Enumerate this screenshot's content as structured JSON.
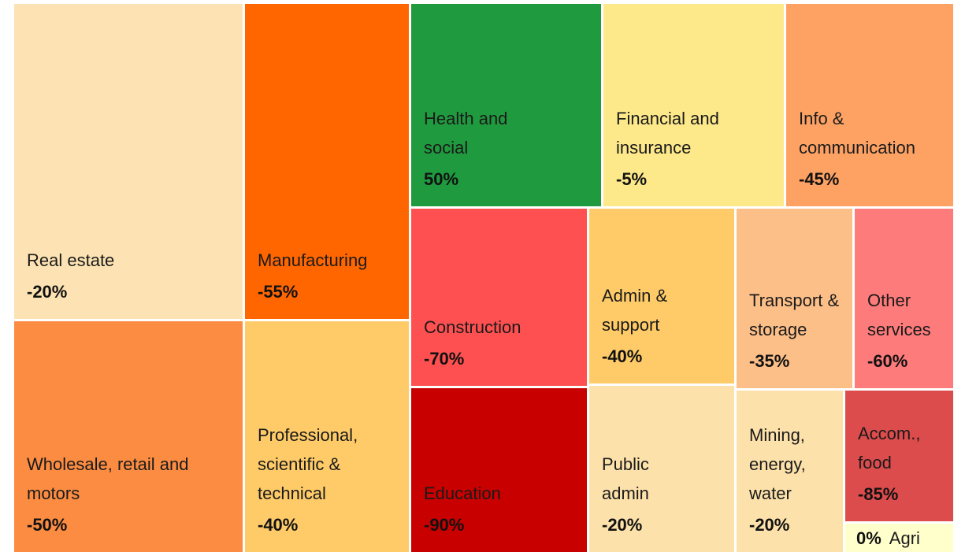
{
  "chart_data": {
    "type": "treemap",
    "categories": [
      "Real estate",
      "Wholesale, retail and motors",
      "Manufacturing",
      "Professional, scientific & technical",
      "Health and social",
      "Financial and insurance",
      "Info & communication",
      "Construction",
      "Education",
      "Admin & support",
      "Public admin",
      "Transport & storage",
      "Other services",
      "Mining, energy, water",
      "Accom., food",
      "Agri"
    ],
    "values": [
      -20,
      -50,
      -55,
      -40,
      50,
      -5,
      -45,
      -70,
      -90,
      -40,
      -20,
      -35,
      -60,
      -20,
      -85,
      0
    ],
    "value_labels": [
      "-20%",
      "-50%",
      "-55%",
      "-40%",
      "50%",
      "-5%",
      "-45%",
      "-70%",
      "-90%",
      "-40%",
      "-20%",
      "-35%",
      "-60%",
      "-20%",
      "-85%",
      "0%"
    ],
    "colors": [
      "#fde3b3",
      "#fb8c42",
      "#ff6600",
      "#fecb68",
      "#1f9a3e",
      "#fde98a",
      "#fea264",
      "#fe5050",
      "#c80000",
      "#fecb68",
      "#fde1aa",
      "#fdbf88",
      "#fe7b7b",
      "#fde1aa",
      "#dc4c4c",
      "#ffffcc"
    ]
  }
}
